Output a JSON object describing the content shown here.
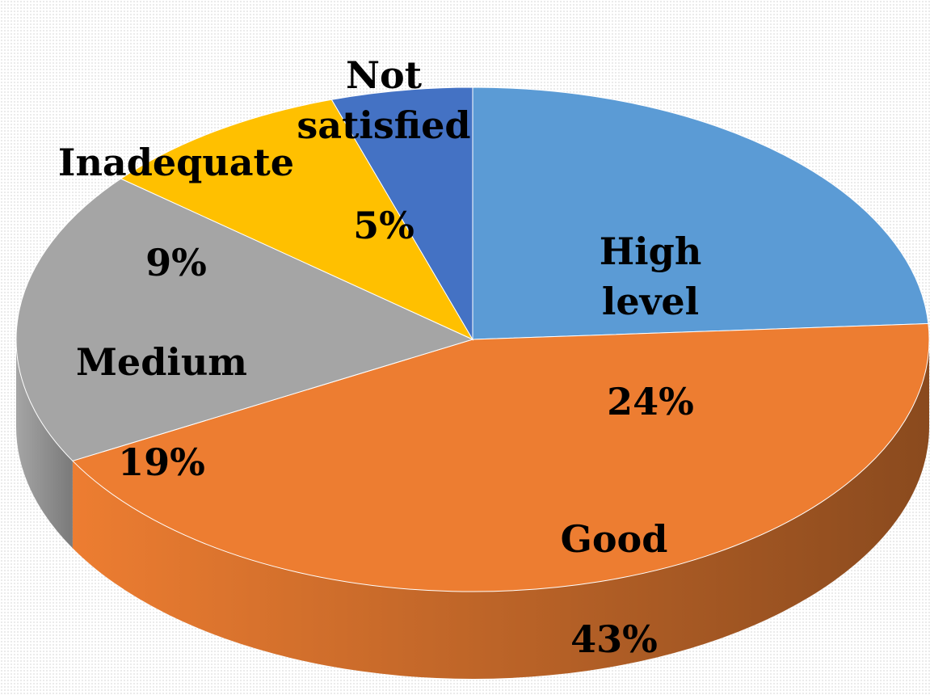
{
  "chart_data": {
    "type": "pie",
    "categories": [
      "High level",
      "Good",
      "Medium",
      "Inadequate",
      "Not satisfied"
    ],
    "values": [
      24,
      43,
      19,
      9,
      5
    ],
    "unit": "%",
    "colors": [
      "#5b9bd5",
      "#ed7d31",
      "#a5a5a5",
      "#ffc000",
      "#4472c4"
    ],
    "side_colors": [
      "#3f6e9a",
      "#8a4a1e",
      "#7a7a7a",
      "#b38600",
      "#2f4f8a"
    ],
    "labels": [
      {
        "name": "High\nlevel",
        "value": "24%"
      },
      {
        "name": "Good",
        "value": "43%"
      },
      {
        "name": "Medium",
        "value": "19%"
      },
      {
        "name": "Inadequate",
        "value": "9%"
      },
      {
        "name": "Not\nsatisfied",
        "value": "5%"
      }
    ],
    "legend": "none",
    "style": "3d"
  }
}
